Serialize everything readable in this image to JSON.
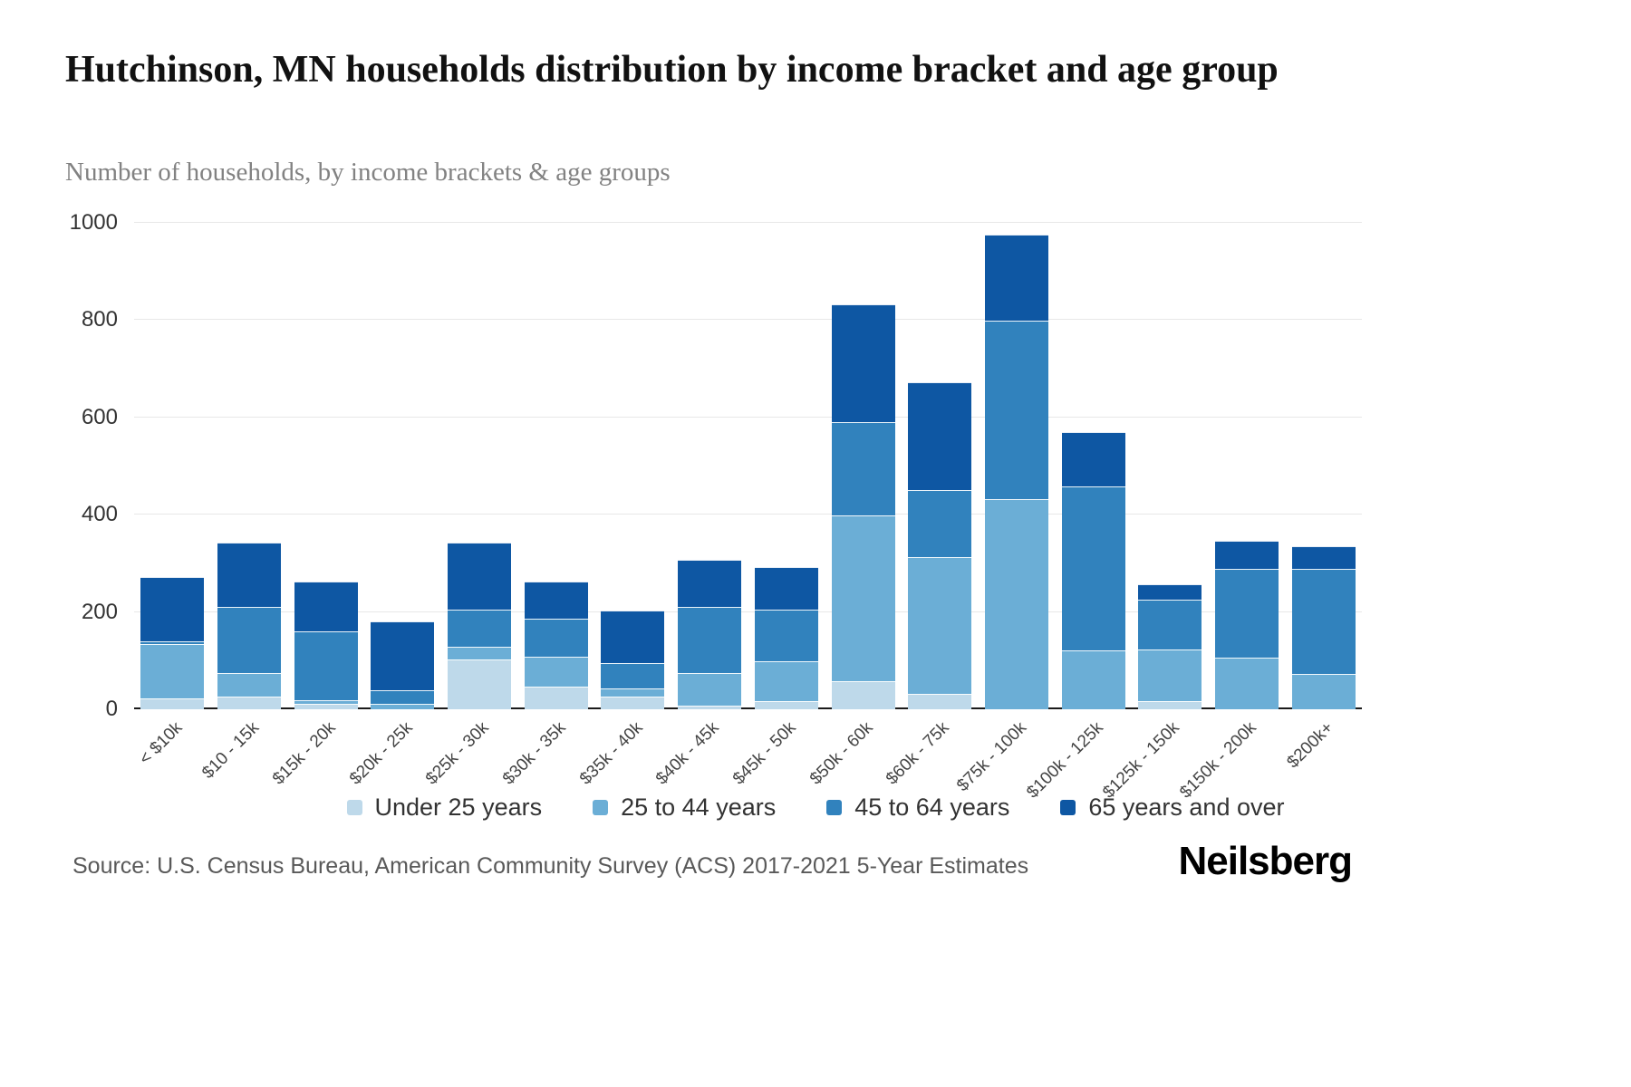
{
  "header": {
    "title": "Hutchinson, MN households distribution by income bracket and age group",
    "subtitle": "Number of households, by income brackets & age groups"
  },
  "footer": {
    "source": "Source: U.S. Census Bureau, American Community Survey (ACS) 2017-2021 5-Year Estimates",
    "brand": "Neilsberg"
  },
  "chart_data": {
    "type": "bar",
    "variant": "stacked",
    "title": "Hutchinson, MN households distribution by income bracket and age group",
    "subtitle": "Number of households, by income brackets & age groups",
    "xlabel": "",
    "ylabel": "Number of households",
    "ylim": [
      0,
      1000
    ],
    "yticks": [
      0,
      200,
      400,
      600,
      800,
      1000
    ],
    "grid": true,
    "legend_position": "bottom",
    "categories": [
      "< $10k",
      "$10 - 15k",
      "$15k - 20k",
      "$20k - 25k",
      "$25k - 30k",
      "$30k - 35k",
      "$35k - 40k",
      "$40k - 45k",
      "$45k - 50k",
      "$50k - 60k",
      "$60k - 75k",
      "$75k - 100k",
      "$100k - 125k",
      "$125k - 150k",
      "$150k - 200k",
      "$200k+"
    ],
    "series": [
      {
        "name": "Under 25 years",
        "color": "#bed9ea",
        "values": [
          20,
          25,
          10,
          0,
          100,
          45,
          25,
          5,
          15,
          55,
          30,
          0,
          0,
          15,
          0,
          0
        ]
      },
      {
        "name": "25 to 44 years",
        "color": "#6baed6",
        "values": [
          110,
          45,
          5,
          10,
          25,
          60,
          15,
          65,
          80,
          340,
          280,
          430,
          120,
          105,
          105,
          70
        ]
      },
      {
        "name": "45 to 64 years",
        "color": "#3182bd",
        "values": [
          5,
          135,
          140,
          25,
          75,
          75,
          50,
          135,
          105,
          190,
          135,
          365,
          335,
          100,
          180,
          215
        ]
      },
      {
        "name": "65 years and over",
        "color": "#0e57a3",
        "values": [
          130,
          130,
          100,
          140,
          135,
          75,
          105,
          95,
          85,
          240,
          220,
          175,
          110,
          30,
          55,
          45
        ]
      }
    ]
  }
}
